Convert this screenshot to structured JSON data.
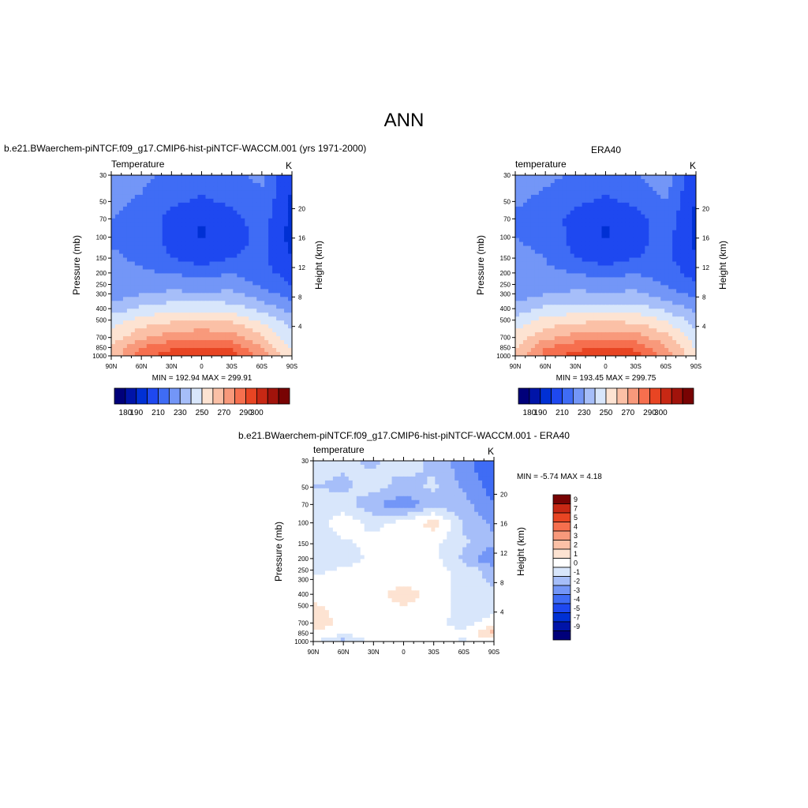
{
  "title": "ANN",
  "chart_data": [
    {
      "type": "heatmap",
      "id": "model",
      "header": "b.e21.BWaerchem-piNTCF.f09_g17.CMIP6-hist-piNTCF-WACCM.001 (yrs 1971-2000)",
      "variable": "Temperature",
      "units": "K",
      "ylabel": "Pressure (mb)",
      "ylabel_right": "Height (km)",
      "x_ticks": [
        "90N",
        "60N",
        "30N",
        "0",
        "30S",
        "60S",
        "90S"
      ],
      "y_ticks": [
        30,
        50,
        70,
        100,
        150,
        200,
        250,
        300,
        400,
        500,
        700,
        850,
        1000
      ],
      "height_ticks": [
        4,
        8,
        12,
        16,
        20
      ],
      "stats": "MIN = 192.94  MAX = 299.91",
      "min": 192.94,
      "max": 299.91,
      "colorbar": {
        "ticks": [
          180,
          190,
          210,
          230,
          250,
          270,
          290,
          300
        ],
        "colors": [
          "#00007a",
          "#0014a8",
          "#0030d4",
          "#1e48f0",
          "#3f6cf5",
          "#7396f7",
          "#a6bef9",
          "#d8e6fb",
          "#fde3d2",
          "#fbc0a6",
          "#f8997b",
          "#f66f4e",
          "#e84523",
          "#c72814",
          "#a1130b",
          "#780303"
        ]
      },
      "grid": {
        "lats": [
          90,
          60,
          30,
          0,
          -30,
          -60,
          -90
        ],
        "levels": [
          30,
          50,
          70,
          100,
          150,
          200,
          250,
          300,
          400,
          500,
          700,
          850,
          1000
        ],
        "values": [
          [
            225,
            222,
            218,
            216,
            218,
            222,
            200
          ],
          [
            222,
            219,
            212,
            208,
            212,
            218,
            198
          ],
          [
            220,
            217,
            206,
            200,
            206,
            215,
            197
          ],
          [
            219,
            218,
            206,
            199,
            206,
            213,
            196
          ],
          [
            221,
            219,
            210,
            205,
            210,
            212,
            200
          ],
          [
            222,
            221,
            220,
            216,
            220,
            214,
            205
          ],
          [
            222,
            224,
            226,
            224,
            226,
            218,
            210
          ],
          [
            224,
            230,
            232,
            232,
            232,
            224,
            216
          ],
          [
            234,
            242,
            246,
            246,
            245,
            236,
            226
          ],
          [
            245,
            254,
            258,
            260,
            258,
            248,
            235
          ],
          [
            254,
            268,
            276,
            278,
            276,
            262,
            243
          ],
          [
            260,
            280,
            288,
            292,
            288,
            270,
            248
          ],
          [
            263,
            285,
            296,
            300,
            297,
            275,
            250
          ]
        ]
      }
    },
    {
      "type": "heatmap",
      "id": "obs",
      "header": "ERA40",
      "variable": "temperature",
      "units": "K",
      "ylabel": "Pressure (mb)",
      "ylabel_right": "Height (km)",
      "x_ticks": [
        "90N",
        "60N",
        "30N",
        "0",
        "30S",
        "60S",
        "90S"
      ],
      "y_ticks": [
        30,
        50,
        70,
        100,
        150,
        200,
        250,
        300,
        400,
        500,
        700,
        850,
        1000
      ],
      "height_ticks": [
        4,
        8,
        12,
        16,
        20
      ],
      "stats": "MIN = 193.45  MAX = 299.75",
      "min": 193.45,
      "max": 299.75,
      "colorbar": {
        "ticks": [
          180,
          190,
          210,
          230,
          250,
          270,
          290,
          300
        ],
        "colors": [
          "#00007a",
          "#0014a8",
          "#0030d4",
          "#1e48f0",
          "#3f6cf5",
          "#7396f7",
          "#a6bef9",
          "#d8e6fb",
          "#fde3d2",
          "#fbc0a6",
          "#f8997b",
          "#f66f4e",
          "#e84523",
          "#c72814",
          "#a1130b",
          "#780303"
        ]
      },
      "grid": {
        "lats": [
          90,
          60,
          30,
          0,
          -30,
          -60,
          -90
        ],
        "levels": [
          30,
          50,
          70,
          100,
          150,
          200,
          250,
          300,
          400,
          500,
          700,
          850,
          1000
        ],
        "values": [
          [
            224,
            222,
            219,
            217,
            219,
            226,
            201
          ],
          [
            221,
            218,
            212,
            208,
            212,
            220,
            199
          ],
          [
            219,
            216,
            206,
            200,
            206,
            217,
            198
          ],
          [
            220,
            218,
            206,
            199,
            206,
            214,
            197
          ],
          [
            222,
            220,
            210,
            205,
            210,
            213,
            201
          ],
          [
            222,
            222,
            220,
            216,
            220,
            215,
            206
          ],
          [
            222,
            224,
            226,
            224,
            226,
            219,
            211
          ],
          [
            224,
            230,
            232,
            232,
            232,
            225,
            217
          ],
          [
            234,
            242,
            245,
            245,
            245,
            237,
            227
          ],
          [
            244,
            253,
            257,
            259,
            257,
            249,
            236
          ],
          [
            253,
            267,
            275,
            277,
            275,
            263,
            244
          ],
          [
            259,
            279,
            287,
            291,
            287,
            271,
            249
          ],
          [
            262,
            284,
            295,
            299,
            296,
            276,
            251
          ]
        ]
      }
    },
    {
      "type": "heatmap",
      "id": "diff",
      "header": "b.e21.BWaerchem-piNTCF.f09_g17.CMIP6-hist-piNTCF-WACCM.001 - ERA40",
      "variable": "temperature",
      "units": "K",
      "ylabel": "Pressure (mb)",
      "ylabel_right": "Height (km)",
      "x_ticks": [
        "90N",
        "60N",
        "30N",
        "0",
        "30S",
        "60S",
        "90S"
      ],
      "y_ticks": [
        30,
        50,
        70,
        100,
        150,
        200,
        250,
        300,
        400,
        500,
        700,
        850,
        1000
      ],
      "height_ticks": [
        4,
        8,
        12,
        16,
        20
      ],
      "stats": "MIN =  -5.74  MAX =   4.18",
      "min": -5.74,
      "max": 4.18,
      "colorbar": {
        "ticks": [
          9,
          7,
          5,
          4,
          3,
          2,
          1,
          0,
          -1,
          -2,
          -3,
          -4,
          -5,
          -7,
          -9
        ],
        "colors": [
          "#780303",
          "#c72814",
          "#e84523",
          "#f66f4e",
          "#f8997b",
          "#fbc0a6",
          "#fde3d2",
          "#ffffff",
          "#d8e6fb",
          "#a6bef9",
          "#7396f7",
          "#3f6cf5",
          "#1e48f0",
          "#0030d4",
          "#0014a8",
          "#00007a"
        ]
      },
      "grid": {
        "lats": [
          90,
          60,
          30,
          0,
          -30,
          -60,
          -90
        ],
        "levels": [
          30,
          50,
          70,
          100,
          150,
          200,
          250,
          300,
          400,
          500,
          700,
          850,
          1000
        ],
        "values": [
          [
            -0.6,
            -0.8,
            -1.2,
            -0.4,
            -1.3,
            -2.6,
            -4.0
          ],
          [
            -1.0,
            -1.2,
            -0.5,
            -1.5,
            -0.8,
            -2.2,
            -3.5
          ],
          [
            -0.6,
            -0.4,
            -1.8,
            -2.8,
            -1.4,
            -1.6,
            -3.0
          ],
          [
            -0.5,
            0.5,
            -0.3,
            0.3,
            1.5,
            -1.2,
            -2.2
          ],
          [
            -0.4,
            -0.2,
            0.3,
            0.4,
            0.2,
            -0.8,
            -1.8
          ],
          [
            -0.6,
            -0.5,
            0.2,
            0.3,
            0.4,
            -1.3,
            -3.2
          ],
          [
            -0.4,
            0.2,
            0.4,
            0.3,
            0.4,
            -0.4,
            -1.4
          ],
          [
            0.3,
            0.5,
            0.5,
            0.6,
            0.4,
            -0.4,
            -1.3
          ],
          [
            0.4,
            0.5,
            0.6,
            1.6,
            0.6,
            -0.6,
            -0.8
          ],
          [
            1.2,
            0.5,
            0.4,
            1.0,
            0.5,
            -0.3,
            -0.5
          ],
          [
            1.8,
            0.6,
            0.5,
            0.4,
            0.3,
            -0.4,
            0.4
          ],
          [
            0.8,
            0.3,
            0.6,
            0.5,
            0.4,
            0.2,
            2.5
          ],
          [
            0.4,
            -1.5,
            0.4,
            0.5,
            0.4,
            -0.2,
            0.6
          ]
        ]
      }
    }
  ]
}
